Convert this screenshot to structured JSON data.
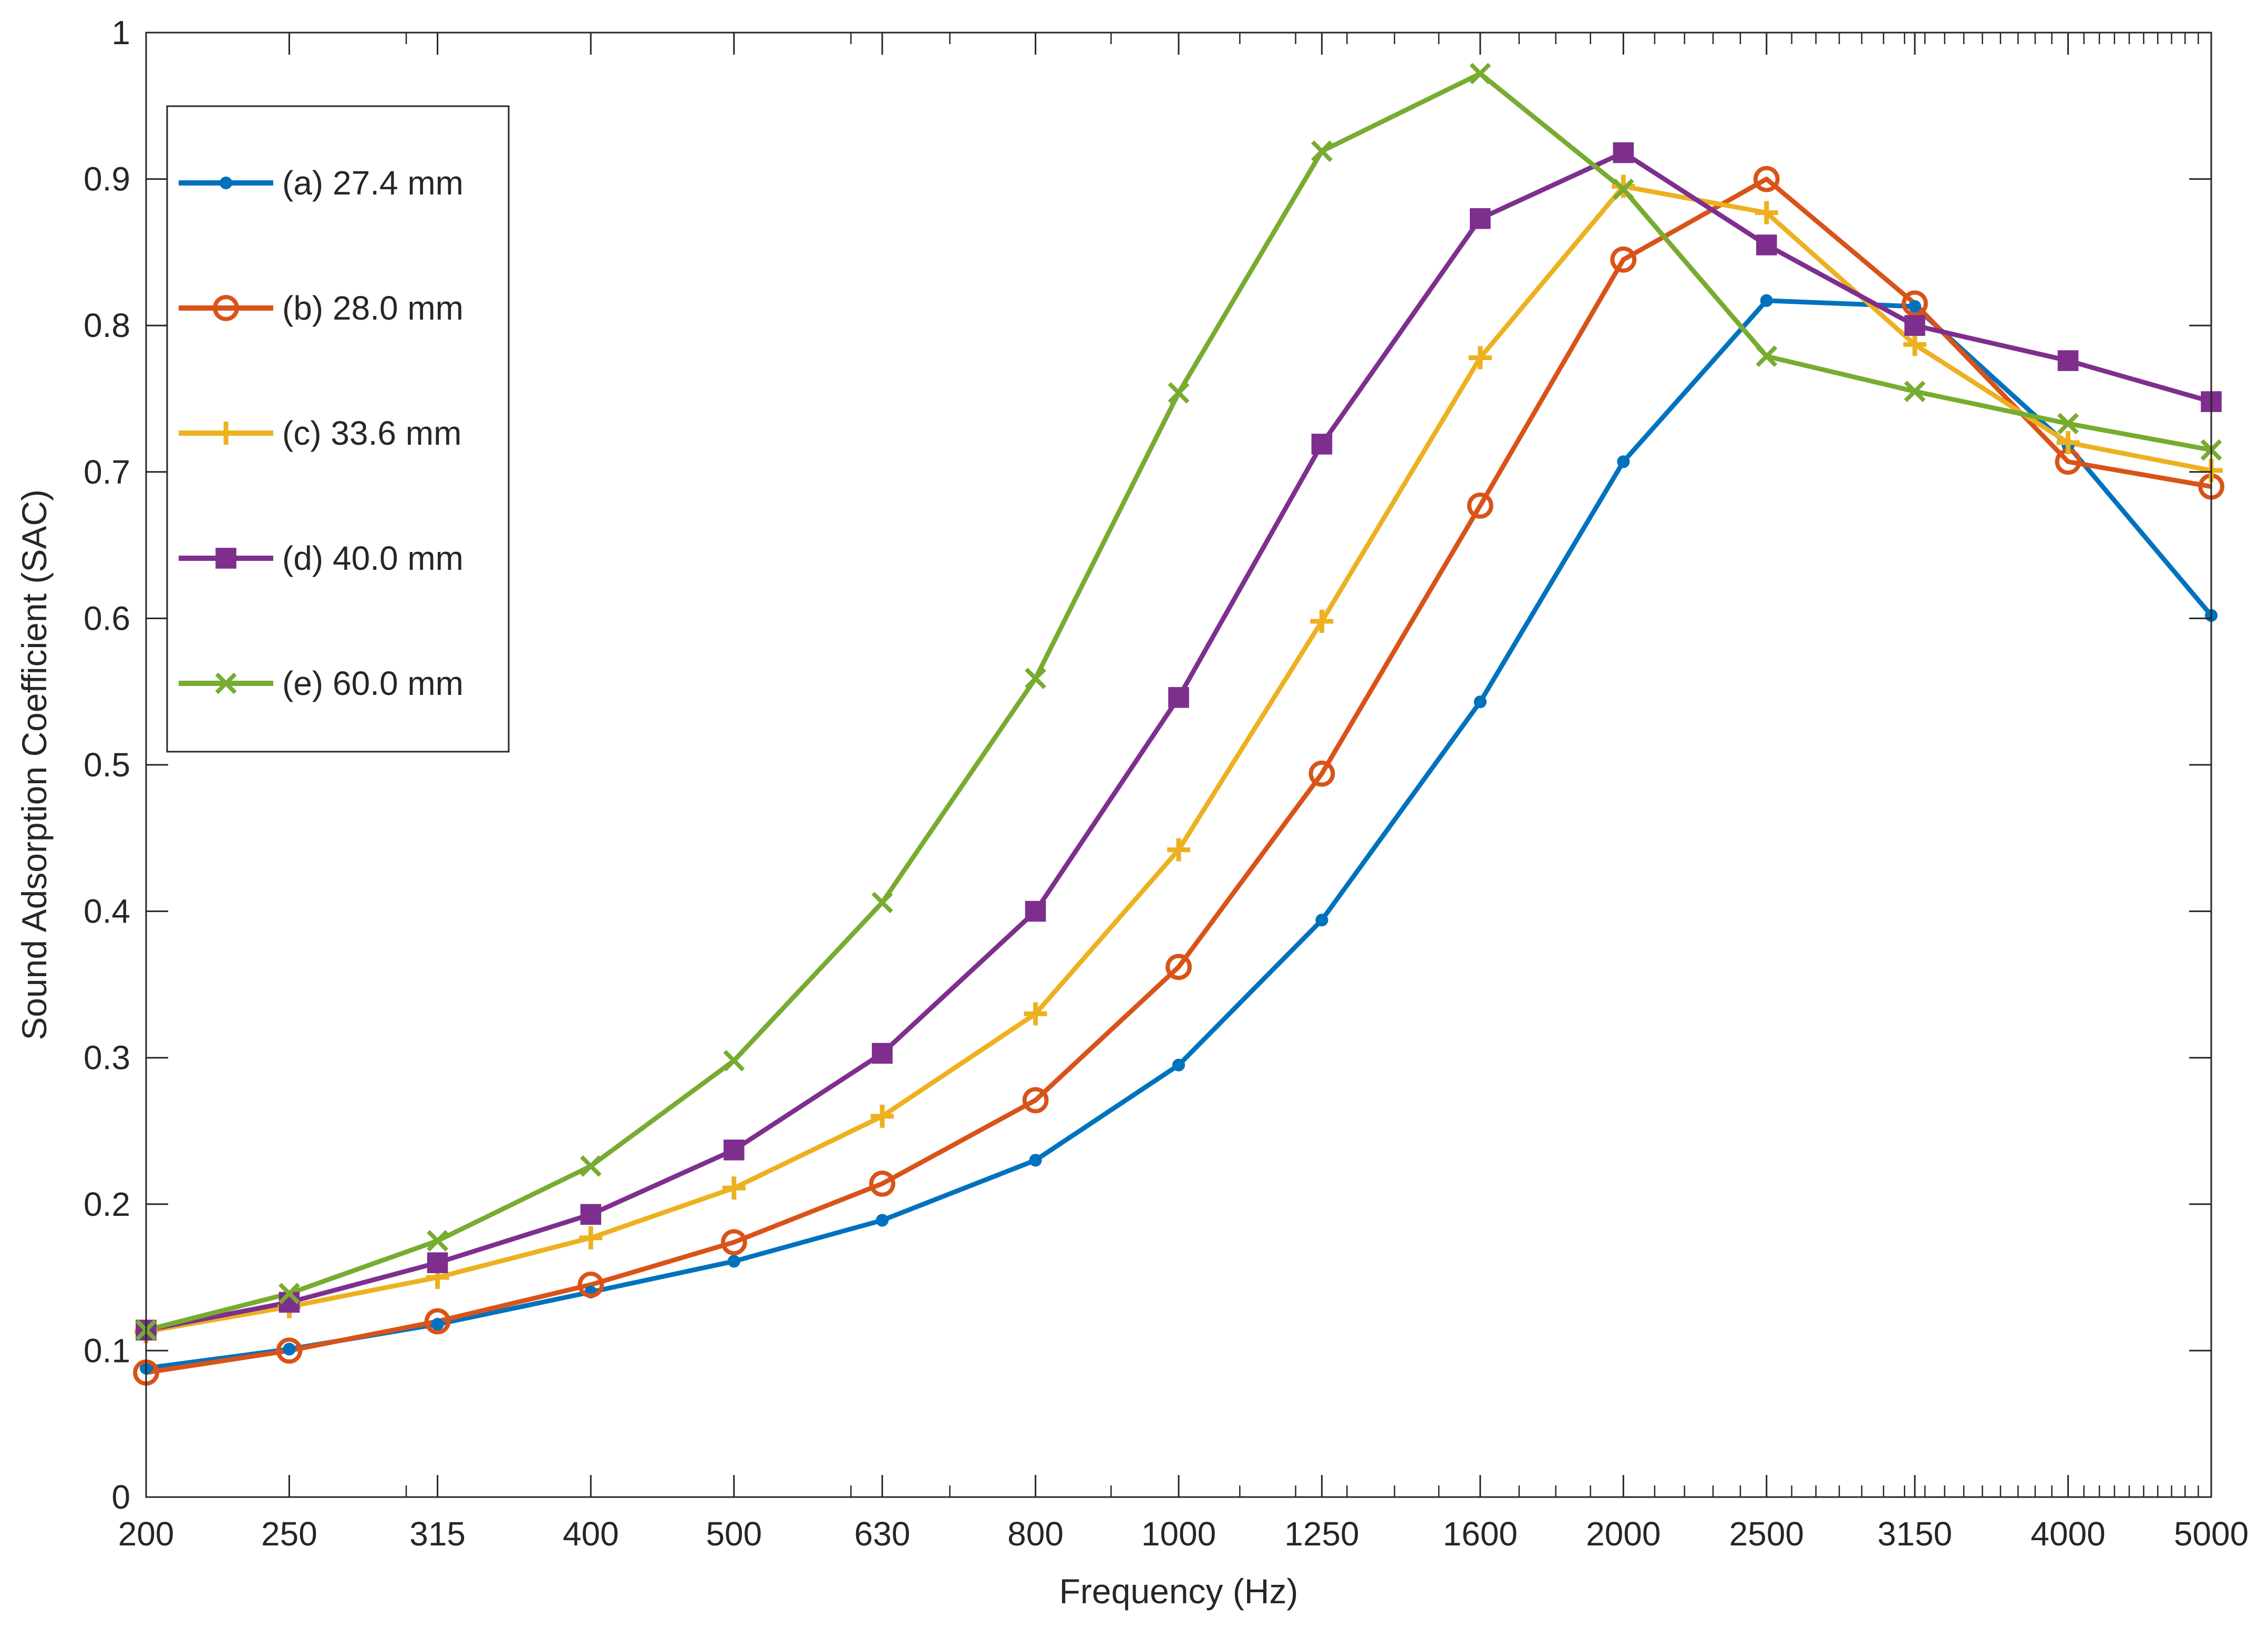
{
  "chart_data": {
    "type": "line",
    "title": "",
    "xlabel": "Frequency (Hz)",
    "ylabel": "Sound Adsorption Coefficient (SAC)",
    "x_scale": "log",
    "xlim": [
      200,
      5000
    ],
    "ylim": [
      0,
      1
    ],
    "grid": false,
    "legend_position": "top-left",
    "x_ticks": [
      200,
      250,
      315,
      400,
      500,
      630,
      800,
      1000,
      1250,
      1600,
      2000,
      2500,
      3150,
      4000,
      5000
    ],
    "x_tick_labels": [
      "200",
      "250",
      "315",
      "400",
      "500",
      "630",
      "800",
      "1000",
      "1250",
      "1600",
      "2000",
      "2500",
      "3150",
      "4000",
      "5000"
    ],
    "y_ticks": [
      0,
      0.1,
      0.2,
      0.3,
      0.4,
      0.5,
      0.6,
      0.7,
      0.8,
      0.9,
      1
    ],
    "y_tick_labels": [
      "0",
      "0.1",
      "0.2",
      "0.3",
      "0.4",
      "0.5",
      "0.6",
      "0.7",
      "0.8",
      "0.9",
      "1"
    ],
    "x": [
      200,
      250,
      315,
      400,
      500,
      630,
      800,
      1000,
      1250,
      1600,
      2000,
      2500,
      3150,
      4000,
      5000
    ],
    "series": [
      {
        "name": "(a) 27.4 mm",
        "color": "#0072BD",
        "marker": "dot",
        "values": [
          0.088,
          0.101,
          0.118,
          0.14,
          0.161,
          0.189,
          0.23,
          0.295,
          0.394,
          0.543,
          0.707,
          0.817,
          0.813,
          0.718,
          0.602
        ]
      },
      {
        "name": "(b) 28.0 mm",
        "color": "#D95319",
        "marker": "circle",
        "values": [
          0.085,
          0.1,
          0.12,
          0.145,
          0.174,
          0.214,
          0.271,
          0.362,
          0.494,
          0.677,
          0.845,
          0.9,
          0.815,
          0.707,
          0.69
        ]
      },
      {
        "name": "(c) 33.6 mm",
        "color": "#EDB120",
        "marker": "plus",
        "values": [
          0.113,
          0.13,
          0.15,
          0.177,
          0.211,
          0.26,
          0.33,
          0.442,
          0.598,
          0.778,
          0.895,
          0.877,
          0.787,
          0.72,
          0.701
        ]
      },
      {
        "name": "(d) 40.0 mm",
        "color": "#7E2F8E",
        "marker": "square",
        "values": [
          0.114,
          0.133,
          0.16,
          0.193,
          0.237,
          0.303,
          0.4,
          0.546,
          0.719,
          0.873,
          0.918,
          0.855,
          0.8,
          0.776,
          0.748
        ]
      },
      {
        "name": "(e) 60.0 mm",
        "color": "#77AC30",
        "marker": "x",
        "values": [
          0.114,
          0.139,
          0.175,
          0.226,
          0.298,
          0.406,
          0.559,
          0.754,
          0.919,
          0.972,
          0.893,
          0.779,
          0.755,
          0.733,
          0.715
        ]
      }
    ]
  }
}
